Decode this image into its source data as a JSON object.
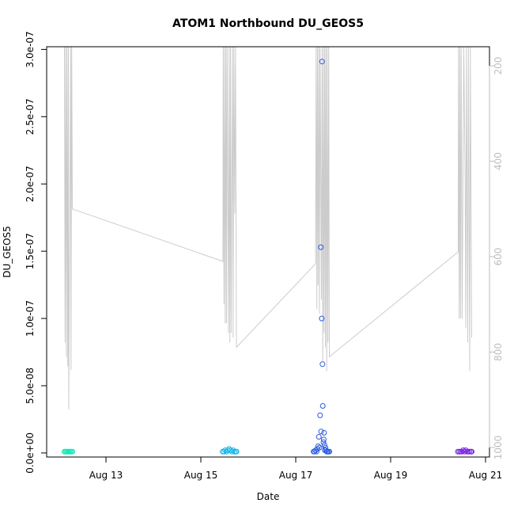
{
  "chart_data": {
    "type": "scatter",
    "title": "ATOM1 Northbound DU_GEOS5",
    "xlabel": "Date",
    "ylabel": "DU_GEOS5",
    "xlim": [
      "2016-08-11T18:00",
      "2016-08-21T02:00"
    ],
    "ylim": [
      -3e-09,
      3.02e-07
    ],
    "y2lim": [
      1020,
      160
    ],
    "x_ticks": [
      "2016-08-13",
      "2016-08-15",
      "2016-08-17",
      "2016-08-19",
      "2016-08-21"
    ],
    "x_tick_labels": [
      "Aug 13",
      "Aug 15",
      "Aug 17",
      "Aug 19",
      "Aug 21"
    ],
    "y_ticks": [
      0,
      5e-08,
      1e-07,
      1.5e-07,
      2e-07,
      2.5e-07,
      3e-07
    ],
    "y_tick_labels": [
      "0.0e+00",
      "5.0e-08",
      "1.0e-07",
      "1.5e-07",
      "2.0e-07",
      "2.5e-07",
      "3.0e-07"
    ],
    "y2_ticks": [
      200,
      400,
      600,
      800,
      1000
    ],
    "y2_tick_labels": [
      "200",
      "400",
      "600",
      "800",
      "1000"
    ],
    "altitude_trace": {
      "color": "#cccccc",
      "points": [
        [
          "2016-08-12T03:00",
          100
        ],
        [
          "2016-08-12T03:20",
          780
        ],
        [
          "2016-08-12T03:40",
          100
        ],
        [
          "2016-08-12T04:00",
          810
        ],
        [
          "2016-08-12T04:20",
          100
        ],
        [
          "2016-08-12T04:40",
          830
        ],
        [
          "2016-08-12T05:00",
          100
        ],
        [
          "2016-08-12T05:10",
          920
        ],
        [
          "2016-08-12T06:10",
          100
        ],
        [
          "2016-08-12T06:20",
          838
        ],
        [
          "2016-08-12T06:40",
          100
        ],
        [
          "2016-08-12T07:00",
          500
        ],
        [
          "2016-08-15T11:10",
          610
        ],
        [
          "2016-08-15T11:20",
          100
        ],
        [
          "2016-08-15T11:40",
          700
        ],
        [
          "2016-08-15T12:00",
          100
        ],
        [
          "2016-08-15T12:20",
          740
        ],
        [
          "2016-08-15T12:40",
          100
        ],
        [
          "2016-08-15T13:00",
          740
        ],
        [
          "2016-08-15T13:20",
          100
        ],
        [
          "2016-08-15T14:00",
          760
        ],
        [
          "2016-08-15T14:20",
          100
        ],
        [
          "2016-08-15T14:40",
          780
        ],
        [
          "2016-08-15T15:00",
          100
        ],
        [
          "2016-08-15T15:20",
          760
        ],
        [
          "2016-08-15T16:00",
          100
        ],
        [
          "2016-08-15T16:20",
          770
        ],
        [
          "2016-08-15T16:40",
          100
        ],
        [
          "2016-08-15T17:10",
          510
        ],
        [
          "2016-08-15T17:30",
          100
        ],
        [
          "2016-08-15T18:00",
          790
        ],
        [
          "2016-08-17T10:00",
          615
        ],
        [
          "2016-08-17T10:20",
          100
        ],
        [
          "2016-08-17T10:40",
          710
        ],
        [
          "2016-08-17T11:00",
          100
        ],
        [
          "2016-08-17T11:20",
          660
        ],
        [
          "2016-08-17T11:40",
          100
        ],
        [
          "2016-08-17T12:00",
          720
        ],
        [
          "2016-08-17T12:20",
          100
        ],
        [
          "2016-08-17T13:00",
          690
        ],
        [
          "2016-08-17T13:20",
          100
        ],
        [
          "2016-08-17T13:40",
          820
        ],
        [
          "2016-08-17T14:00",
          100
        ],
        [
          "2016-08-17T14:20",
          760
        ],
        [
          "2016-08-17T14:40",
          100
        ],
        [
          "2016-08-17T15:00",
          790
        ],
        [
          "2016-08-17T15:20",
          100
        ],
        [
          "2016-08-17T15:40",
          840
        ],
        [
          "2016-08-17T16:00",
          100
        ],
        [
          "2016-08-17T16:20",
          780
        ],
        [
          "2016-08-17T16:40",
          100
        ],
        [
          "2016-08-17T17:00",
          810
        ],
        [
          "2016-08-20T10:10",
          590
        ],
        [
          "2016-08-20T10:20",
          100
        ],
        [
          "2016-08-20T10:40",
          730
        ],
        [
          "2016-08-20T11:00",
          100
        ],
        [
          "2016-08-20T11:20",
          730
        ],
        [
          "2016-08-20T11:40",
          100
        ],
        [
          "2016-08-20T12:10",
          730
        ],
        [
          "2016-08-20T13:00",
          100
        ],
        [
          "2016-08-20T13:40",
          440
        ],
        [
          "2016-08-20T14:00",
          750
        ],
        [
          "2016-08-20T14:20",
          100
        ],
        [
          "2016-08-20T15:00",
          780
        ],
        [
          "2016-08-20T15:20",
          100
        ],
        [
          "2016-08-20T16:00",
          840
        ],
        [
          "2016-08-20T16:20",
          100
        ],
        [
          "2016-08-20T17:00",
          770
        ]
      ]
    },
    "series": [
      {
        "color": "#14e8b8",
        "points": [
          [
            "2016-08-12T03:00",
            1e-09
          ],
          [
            "2016-08-12T03:30",
            1e-09
          ],
          [
            "2016-08-12T04:00",
            1e-09
          ],
          [
            "2016-08-12T04:30",
            1e-09
          ],
          [
            "2016-08-12T05:00",
            1e-09
          ],
          [
            "2016-08-12T05:30",
            1e-09
          ],
          [
            "2016-08-12T06:00",
            1e-09
          ],
          [
            "2016-08-12T06:30",
            1e-09
          ],
          [
            "2016-08-12T07:00",
            1e-09
          ]
        ]
      },
      {
        "color": "#12b5e8",
        "points": [
          [
            "2016-08-15T11:00",
            1e-09
          ],
          [
            "2016-08-15T11:40",
            1e-09
          ],
          [
            "2016-08-15T12:20",
            2e-09
          ],
          [
            "2016-08-15T13:00",
            1e-09
          ],
          [
            "2016-08-15T13:40",
            2e-09
          ],
          [
            "2016-08-15T14:20",
            3e-09
          ],
          [
            "2016-08-15T15:00",
            2e-09
          ],
          [
            "2016-08-15T15:40",
            1e-09
          ],
          [
            "2016-08-15T16:20",
            2e-09
          ],
          [
            "2016-08-15T17:00",
            1e-09
          ],
          [
            "2016-08-15T17:40",
            1e-09
          ],
          [
            "2016-08-15T18:00",
            1e-09
          ]
        ]
      },
      {
        "color": "#2c5ce0",
        "points": [
          [
            "2016-08-17T09:00",
            1e-09
          ],
          [
            "2016-08-17T09:30",
            1e-09
          ],
          [
            "2016-08-17T10:00",
            2e-09
          ],
          [
            "2016-08-17T10:30",
            1e-09
          ],
          [
            "2016-08-17T11:00",
            3e-09
          ],
          [
            "2016-08-17T11:20",
            5e-09
          ],
          [
            "2016-08-17T11:40",
            1.2e-08
          ],
          [
            "2016-08-17T12:00",
            4e-09
          ],
          [
            "2016-08-17T12:20",
            2.8e-08
          ],
          [
            "2016-08-17T12:40",
            1.53e-07
          ],
          [
            "2016-08-17T12:50",
            1.6e-08
          ],
          [
            "2016-08-17T13:10",
            1e-07
          ],
          [
            "2016-08-17T13:20",
            2.91e-07
          ],
          [
            "2016-08-17T13:30",
            6.6e-08
          ],
          [
            "2016-08-17T13:40",
            3.5e-08
          ],
          [
            "2016-08-17T14:00",
            8e-09
          ],
          [
            "2016-08-17T14:10",
            1e-08
          ],
          [
            "2016-08-17T14:20",
            1.5e-08
          ],
          [
            "2016-08-17T14:30",
            6e-09
          ],
          [
            "2016-08-17T14:40",
            2e-09
          ],
          [
            "2016-08-17T15:00",
            4e-09
          ],
          [
            "2016-08-17T15:20",
            2e-09
          ],
          [
            "2016-08-17T15:40",
            1e-09
          ],
          [
            "2016-08-17T16:00",
            1e-09
          ],
          [
            "2016-08-17T16:30",
            1e-09
          ],
          [
            "2016-08-17T17:00",
            1e-09
          ]
        ]
      },
      {
        "color": "#7a22e8",
        "points": [
          [
            "2016-08-20T10:00",
            1e-09
          ],
          [
            "2016-08-20T10:40",
            1e-09
          ],
          [
            "2016-08-20T11:20",
            1e-09
          ],
          [
            "2016-08-20T12:00",
            1e-09
          ],
          [
            "2016-08-20T12:40",
            2e-09
          ],
          [
            "2016-08-20T13:20",
            1e-09
          ],
          [
            "2016-08-20T14:00",
            2e-09
          ],
          [
            "2016-08-20T14:40",
            1e-09
          ],
          [
            "2016-08-20T15:20",
            1e-09
          ],
          [
            "2016-08-20T16:00",
            1e-09
          ],
          [
            "2016-08-20T16:40",
            1e-09
          ],
          [
            "2016-08-20T17:00",
            1e-09
          ]
        ]
      }
    ],
    "colors": {
      "axis": "#000000",
      "secondary_axis": "#bdbdbd"
    }
  }
}
